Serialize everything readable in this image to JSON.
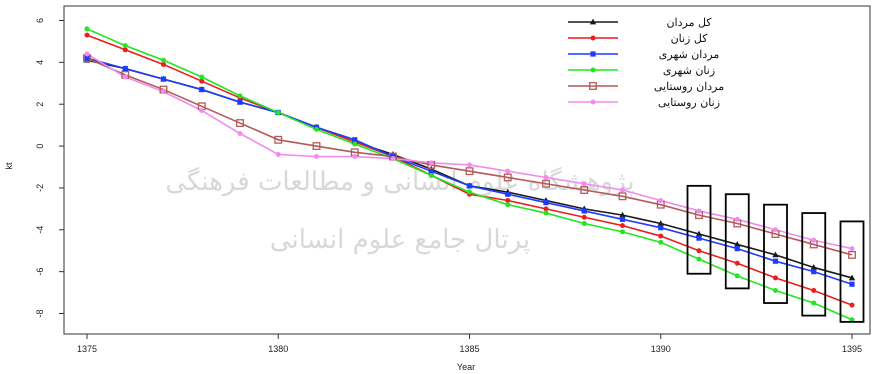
{
  "chart_data": {
    "type": "line",
    "xlabel": "Year",
    "ylabel": "kt",
    "xlim": [
      1375,
      1395
    ],
    "ylim": [
      -8.5,
      6.5
    ],
    "x_ticks": [
      1375,
      1380,
      1385,
      1390,
      1395
    ],
    "y_ticks": [
      6,
      4,
      2,
      0,
      -2,
      -4,
      -6,
      -8
    ],
    "grid": false,
    "legend_position": "top-right",
    "x": [
      1375,
      1376,
      1377,
      1378,
      1379,
      1380,
      1381,
      1382,
      1383,
      1384,
      1385,
      1386,
      1387,
      1388,
      1389,
      1390,
      1391,
      1392,
      1393,
      1394,
      1395
    ],
    "series": [
      {
        "name": "کل مردان",
        "color": "#1a1a1a",
        "marker": "triangle",
        "values": [
          4.1,
          3.7,
          3.2,
          2.7,
          2.1,
          1.6,
          0.9,
          0.2,
          -0.4,
          -1.1,
          -1.9,
          -2.2,
          -2.6,
          -3.0,
          -3.3,
          -3.7,
          -4.2,
          -4.7,
          -5.2,
          -5.8,
          -6.3
        ]
      },
      {
        "name": "کل زنان",
        "color": "#ee1c1c",
        "marker": "circle",
        "values": [
          5.3,
          4.6,
          3.9,
          3.1,
          2.3,
          1.6,
          0.9,
          0.2,
          -0.5,
          -1.4,
          -2.3,
          -2.6,
          -3.0,
          -3.4,
          -3.8,
          -4.3,
          -5.0,
          -5.6,
          -6.3,
          -6.9,
          -7.6
        ]
      },
      {
        "name": "مردان شهری",
        "color": "#1e3cff",
        "marker": "square",
        "values": [
          4.2,
          3.7,
          3.2,
          2.7,
          2.1,
          1.6,
          0.9,
          0.3,
          -0.5,
          -1.2,
          -1.9,
          -2.3,
          -2.7,
          -3.1,
          -3.5,
          -3.9,
          -4.4,
          -4.9,
          -5.5,
          -6.0,
          -6.6
        ]
      },
      {
        "name": "زنان شهری",
        "color": "#22e622",
        "marker": "circle",
        "values": [
          5.6,
          4.8,
          4.1,
          3.3,
          2.4,
          1.6,
          0.8,
          0.1,
          -0.6,
          -1.4,
          -2.2,
          -2.8,
          -3.2,
          -3.7,
          -4.1,
          -4.6,
          -5.4,
          -6.2,
          -6.9,
          -7.5,
          -8.3
        ]
      },
      {
        "name": "مردان روستایی",
        "color": "#b45a5a",
        "marker": "square-open",
        "values": [
          4.2,
          3.4,
          2.7,
          1.9,
          1.1,
          0.3,
          0.0,
          -0.3,
          -0.5,
          -0.9,
          -1.2,
          -1.5,
          -1.8,
          -2.1,
          -2.4,
          -2.8,
          -3.3,
          -3.7,
          -4.2,
          -4.7,
          -5.2
        ]
      },
      {
        "name": "زنان روستایی",
        "color": "#f08cf0",
        "marker": "circle",
        "values": [
          4.4,
          3.3,
          2.6,
          1.7,
          0.6,
          -0.4,
          -0.5,
          -0.5,
          -0.6,
          -0.8,
          -0.9,
          -1.2,
          -1.5,
          -1.8,
          -2.1,
          -2.6,
          -3.1,
          -3.5,
          -4.0,
          -4.5,
          -4.9
        ]
      }
    ],
    "annotation_boxes": [
      {
        "x": 1391,
        "y_min": -6.1,
        "y_max": -1.9
      },
      {
        "x": 1392,
        "y_min": -6.8,
        "y_max": -2.3
      },
      {
        "x": 1393,
        "y_min": -7.5,
        "y_max": -2.8
      },
      {
        "x": 1394,
        "y_min": -8.1,
        "y_max": -3.2
      },
      {
        "x": 1395,
        "y_min": -8.4,
        "y_max": -3.6
      }
    ]
  },
  "watermark": {
    "lines": [
      "پژوهشگاه علوم انسانی و مطالعات فرهنگی",
      "پرتال جامع علوم انسانی"
    ],
    "color": "#d9d9d9"
  }
}
